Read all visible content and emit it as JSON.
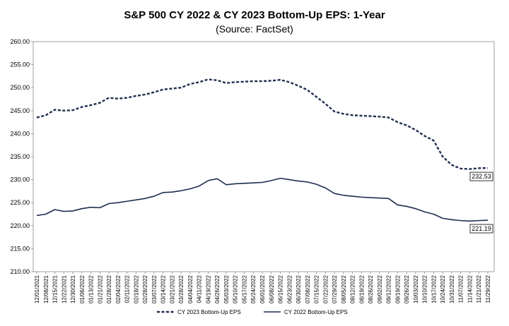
{
  "chart_data": {
    "type": "line",
    "title": "S&P 500 CY 2022 & CY 2023 Bottom-Up  EPS: 1-Year",
    "subtitle": "(Source: FactSet)",
    "ylim": [
      210,
      260
    ],
    "yticks": [
      "210.00",
      "215.00",
      "220.00",
      "225.00",
      "230.00",
      "235.00",
      "240.00",
      "245.00",
      "250.00",
      "255.00",
      "260.00"
    ],
    "x_ticks": [
      "12/01/2021",
      "12/08/2021",
      "12/15/2021",
      "12/22/2021",
      "12/30/2021",
      "01/06/2022",
      "01/13/2022",
      "01/21/2022",
      "01/28/2022",
      "02/04/2022",
      "02/11/2022",
      "02/18/2022",
      "02/28/2022",
      "03/07/2022",
      "03/14/2022",
      "03/21/2022",
      "03/28/2022",
      "04/04/2022",
      "04/11/2022",
      "04/19/2022",
      "04/26/2022",
      "05/03/2022",
      "05/10/2022",
      "05/17/2022",
      "05/24/2022",
      "06/01/2022",
      "06/08/2022",
      "06/15/2022",
      "06/23/2022",
      "06/30/2022",
      "07/08/2022",
      "07/15/2022",
      "07/22/2022",
      "07/29/2022",
      "08/05/2022",
      "08/12/2022",
      "08/19/2022",
      "08/26/2022",
      "09/02/2022",
      "09/12/2022",
      "09/19/2022",
      "09/26/2022",
      "10/03/2022",
      "10/10/2022",
      "10/17/2022",
      "10/24/2022",
      "10/31/2022",
      "11/07/2022",
      "11/14/2022",
      "11/21/2022",
      "11/29/2022"
    ],
    "legend_position": "bottom",
    "grid": {
      "horizontal": false,
      "vertical": false
    },
    "series": [
      {
        "name": "CY 2023 Bottom-Up EPS",
        "style": "dashed",
        "color": "#1f2d4e",
        "values": [
          243.5,
          244.0,
          245.2,
          245.0,
          245.1,
          245.8,
          246.2,
          246.7,
          247.8,
          247.6,
          247.8,
          248.2,
          248.5,
          249.0,
          249.6,
          249.8,
          250.0,
          250.8,
          251.2,
          251.8,
          251.6,
          251.0,
          251.2,
          251.3,
          251.4,
          251.4,
          251.5,
          251.7,
          251.2,
          250.4,
          249.5,
          248.0,
          246.5,
          244.8,
          244.3,
          244.0,
          243.9,
          243.8,
          243.7,
          243.5,
          242.5,
          241.8,
          240.8,
          239.5,
          238.5,
          235.0,
          233.2,
          232.4,
          232.3,
          232.5,
          232.53
        ],
        "end_label": "232.53"
      },
      {
        "name": "CY 2022 Bottom-Up EPS",
        "style": "solid",
        "color": "#1f2d4e",
        "values": [
          222.2,
          222.5,
          223.5,
          223.1,
          223.2,
          223.7,
          224.0,
          223.9,
          224.8,
          225.0,
          225.3,
          225.6,
          225.9,
          226.4,
          227.2,
          227.3,
          227.6,
          228.0,
          228.6,
          229.8,
          230.2,
          228.9,
          229.1,
          229.2,
          229.3,
          229.4,
          229.8,
          230.3,
          230.0,
          229.7,
          229.5,
          229.0,
          228.2,
          227.0,
          226.6,
          226.4,
          226.2,
          226.1,
          226.0,
          225.9,
          224.5,
          224.2,
          223.7,
          223.0,
          222.5,
          221.6,
          221.3,
          221.1,
          221.0,
          221.1,
          221.19
        ],
        "end_label": "221.19"
      }
    ]
  }
}
